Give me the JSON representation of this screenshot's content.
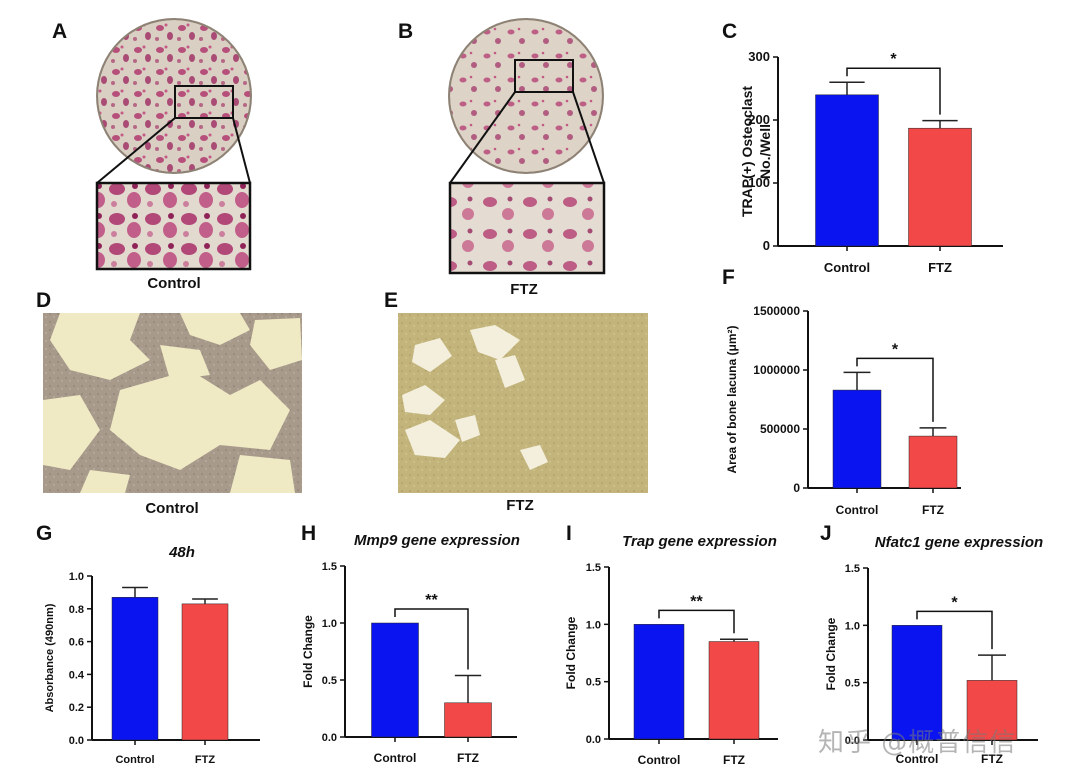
{
  "panels": {
    "A": "A",
    "B": "B",
    "C": "C",
    "D": "D",
    "E": "E",
    "F": "F",
    "G": "G",
    "H": "H",
    "I": "I",
    "J": "J"
  },
  "captions": {
    "a": "Control",
    "b": "FTZ",
    "d": "Control",
    "e": "FTZ"
  },
  "colors": {
    "control": "#0a14f0",
    "ftz": "#f24848"
  },
  "watermark": "知乎 @概普信信",
  "chart_data": [
    {
      "id": "C",
      "type": "bar",
      "categories": [
        "Control",
        "FTZ"
      ],
      "values": [
        240,
        187
      ],
      "errors": [
        20,
        12
      ],
      "ylabel": "TRAP(+) Osteoclast No./Well",
      "ylabel_lines": [
        "TRAP(+) Osteoclast",
        "No./Well"
      ],
      "ylim": [
        0,
        300
      ],
      "yticks": [
        0,
        100,
        200,
        300
      ],
      "ytick_labels": [
        "0",
        "100",
        "200",
        "300"
      ],
      "significance": "*",
      "title": ""
    },
    {
      "id": "F",
      "type": "bar",
      "categories": [
        "Control",
        "FTZ"
      ],
      "values": [
        830000,
        440000
      ],
      "errors": [
        150000,
        70000
      ],
      "ylabel": "Area of bone lacuna (μm²)",
      "ylabel_lines": [
        "Area of bone lacuna (μm²)"
      ],
      "ylim": [
        0,
        1500000
      ],
      "yticks": [
        0,
        500000,
        1000000,
        1500000
      ],
      "ytick_labels": [
        "0",
        "500000",
        "1000000",
        "1500000"
      ],
      "significance": "*",
      "title": ""
    },
    {
      "id": "G",
      "type": "bar",
      "categories": [
        "Control",
        "FTZ"
      ],
      "values": [
        0.87,
        0.83
      ],
      "errors": [
        0.06,
        0.03
      ],
      "ylabel": "Absorbance (490nm)",
      "ylabel_lines": [
        "Absorbance (490nm)"
      ],
      "ylim": [
        0,
        1.0
      ],
      "yticks": [
        0,
        0.2,
        0.4,
        0.6,
        0.8,
        1.0
      ],
      "ytick_labels": [
        "0.0",
        "0.2",
        "0.4",
        "0.6",
        "0.8",
        "1.0"
      ],
      "significance": "",
      "title": "48h"
    },
    {
      "id": "H",
      "type": "bar",
      "categories": [
        "Control",
        "FTZ"
      ],
      "values": [
        1.0,
        0.3
      ],
      "errors": [
        0,
        0.24
      ],
      "ylabel": "Fold Change",
      "ylabel_lines": [
        "Fold Change"
      ],
      "ylim": [
        0,
        1.5
      ],
      "yticks": [
        0,
        0.5,
        1.0,
        1.5
      ],
      "ytick_labels": [
        "0.0",
        "0.5",
        "1.0",
        "1.5"
      ],
      "significance": "**",
      "title": "Mmp9 gene expression"
    },
    {
      "id": "I",
      "type": "bar",
      "categories": [
        "Control",
        "FTZ"
      ],
      "values": [
        1.0,
        0.85
      ],
      "errors": [
        0,
        0.02
      ],
      "ylabel": "Fold Change",
      "ylabel_lines": [
        "Fold Change"
      ],
      "ylim": [
        0,
        1.5
      ],
      "yticks": [
        0,
        0.5,
        1.0,
        1.5
      ],
      "ytick_labels": [
        "0.0",
        "0.5",
        "1.0",
        "1.5"
      ],
      "significance": "**",
      "title": "Trap gene expression"
    },
    {
      "id": "J",
      "type": "bar",
      "categories": [
        "Control",
        "FTZ"
      ],
      "values": [
        1.0,
        0.52
      ],
      "errors": [
        0,
        0.22
      ],
      "ylabel": "Fold Change",
      "ylabel_lines": [
        "Fold Change"
      ],
      "ylim": [
        0,
        1.5
      ],
      "yticks": [
        0,
        0.5,
        1.0,
        1.5
      ],
      "ytick_labels": [
        "0.0",
        "0.5",
        "1.0",
        "1.5"
      ],
      "significance": "*",
      "title": "Nfatc1 gene expression"
    }
  ]
}
